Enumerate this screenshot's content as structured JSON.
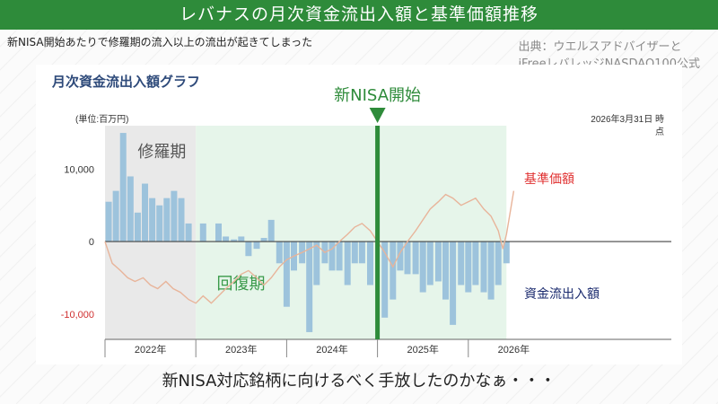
{
  "header": {
    "title": "レバナスの月次資金流出入額と基準価額推移",
    "subtitle": "新NISA開始あたりで修羅期の流入以上の流出が起きてしまった",
    "source_line1": "出典：ウエルスアドバイザーと",
    "source_line2": "iFreeレバレッジNASDAQ100公式"
  },
  "footer": {
    "caption": "新NISA対応銘柄に向けるべく手放したのかなぁ・・・"
  },
  "colors": {
    "banner": "#2e8b3a",
    "flow_bar": "#9dc3dc",
    "price_line": "#e8b49a",
    "shura_band": "#e9e9e9",
    "recovery_band": "#e6f5ea",
    "nisa_marker": "#2e8b3a",
    "price_label": "#e03030",
    "flow_label": "#1a2a6e",
    "chart_title": "#2e4a7a"
  },
  "chart_data": {
    "type": "bar",
    "title": "月次資金流出入額グラフ",
    "unit_label": "(単位:百万円)",
    "date_label_1": "2026年3月31日 時",
    "date_label_2": "点",
    "ylim": [
      -13500,
      16000
    ],
    "y_ticks": [
      {
        "value": 10000,
        "label": "10,000"
      },
      {
        "value": 0,
        "label": "0"
      },
      {
        "value": -10000,
        "label": "-10,000"
      }
    ],
    "x_range": [
      2021.0,
      2026.5
    ],
    "x_ticks": [
      {
        "value": 2022,
        "label": "2022年"
      },
      {
        "value": 2023,
        "label": "2023年"
      },
      {
        "value": 2024,
        "label": "2024年"
      },
      {
        "value": 2025,
        "label": "2025年"
      },
      {
        "value": 2026,
        "label": "2026年"
      }
    ],
    "regions": [
      {
        "name": "修羅期",
        "start": 2021.0,
        "end": 2022.0
      },
      {
        "name": "回復期",
        "start": 2022.0,
        "end": 2025.42
      }
    ],
    "marker": {
      "label": "新NISA開始",
      "x": 2024.0
    },
    "series": [
      {
        "name": "資金流出入額",
        "values": [
          {
            "x": 2021.04,
            "y": 5500
          },
          {
            "x": 2021.12,
            "y": 7000
          },
          {
            "x": 2021.2,
            "y": 15000
          },
          {
            "x": 2021.28,
            "y": 9000
          },
          {
            "x": 2021.36,
            "y": 4000
          },
          {
            "x": 2021.44,
            "y": 8000
          },
          {
            "x": 2021.52,
            "y": 6000
          },
          {
            "x": 2021.6,
            "y": 5000
          },
          {
            "x": 2021.68,
            "y": 6000
          },
          {
            "x": 2021.76,
            "y": 7000
          },
          {
            "x": 2021.84,
            "y": 6000
          },
          {
            "x": 2021.92,
            "y": 2500
          },
          {
            "x": 2022.08,
            "y": 2500
          },
          {
            "x": 2022.25,
            "y": 2500
          },
          {
            "x": 2022.33,
            "y": 700
          },
          {
            "x": 2022.42,
            "y": 300
          },
          {
            "x": 2022.5,
            "y": 700
          },
          {
            "x": 2022.58,
            "y": -2000
          },
          {
            "x": 2022.67,
            "y": -1000
          },
          {
            "x": 2022.75,
            "y": 500
          },
          {
            "x": 2022.83,
            "y": 3000
          },
          {
            "x": 2022.92,
            "y": -3000
          },
          {
            "x": 2023.0,
            "y": -9000
          },
          {
            "x": 2023.08,
            "y": -4000
          },
          {
            "x": 2023.17,
            "y": -3000
          },
          {
            "x": 2023.25,
            "y": -12500
          },
          {
            "x": 2023.33,
            "y": -6000
          },
          {
            "x": 2023.42,
            "y": -3000
          },
          {
            "x": 2023.5,
            "y": -4000
          },
          {
            "x": 2023.58,
            "y": -4000
          },
          {
            "x": 2023.67,
            "y": -6000
          },
          {
            "x": 2023.75,
            "y": -3000
          },
          {
            "x": 2023.83,
            "y": -3000
          },
          {
            "x": 2023.92,
            "y": -6000
          },
          {
            "x": 2024.08,
            "y": -10500
          },
          {
            "x": 2024.17,
            "y": -8000
          },
          {
            "x": 2024.25,
            "y": -4000
          },
          {
            "x": 2024.33,
            "y": -4500
          },
          {
            "x": 2024.42,
            "y": -4500
          },
          {
            "x": 2024.5,
            "y": -7000
          },
          {
            "x": 2024.58,
            "y": -6000
          },
          {
            "x": 2024.67,
            "y": -5500
          },
          {
            "x": 2024.75,
            "y": -8000
          },
          {
            "x": 2024.83,
            "y": -11500
          },
          {
            "x": 2024.92,
            "y": -6000
          },
          {
            "x": 2025.0,
            "y": -7000
          },
          {
            "x": 2025.08,
            "y": -6000
          },
          {
            "x": 2025.17,
            "y": -7000
          },
          {
            "x": 2025.25,
            "y": -8000
          },
          {
            "x": 2025.33,
            "y": -6000
          },
          {
            "x": 2025.42,
            "y": -3000
          }
        ]
      },
      {
        "name": "基準価額",
        "values": [
          {
            "x": 2021.0,
            "y": 0
          },
          {
            "x": 2021.04,
            "y": -1500
          },
          {
            "x": 2021.08,
            "y": -3000
          },
          {
            "x": 2021.17,
            "y": -4000
          },
          {
            "x": 2021.25,
            "y": -5000
          },
          {
            "x": 2021.33,
            "y": -5500
          },
          {
            "x": 2021.42,
            "y": -5000
          },
          {
            "x": 2021.5,
            "y": -6000
          },
          {
            "x": 2021.58,
            "y": -6500
          },
          {
            "x": 2021.67,
            "y": -5500
          },
          {
            "x": 2021.75,
            "y": -6500
          },
          {
            "x": 2021.83,
            "y": -7000
          },
          {
            "x": 2021.92,
            "y": -8000
          },
          {
            "x": 2022.0,
            "y": -8500
          },
          {
            "x": 2022.08,
            "y": -7500
          },
          {
            "x": 2022.17,
            "y": -8500
          },
          {
            "x": 2022.25,
            "y": -7500
          },
          {
            "x": 2022.33,
            "y": -6500
          },
          {
            "x": 2022.42,
            "y": -5500
          },
          {
            "x": 2022.5,
            "y": -4500
          },
          {
            "x": 2022.58,
            "y": -4000
          },
          {
            "x": 2022.67,
            "y": -5000
          },
          {
            "x": 2022.75,
            "y": -6000
          },
          {
            "x": 2022.83,
            "y": -5000
          },
          {
            "x": 2022.92,
            "y": -3500
          },
          {
            "x": 2023.0,
            "y": -2500
          },
          {
            "x": 2023.08,
            "y": -2000
          },
          {
            "x": 2023.17,
            "y": -1500
          },
          {
            "x": 2023.25,
            "y": -1000
          },
          {
            "x": 2023.33,
            "y": -500
          },
          {
            "x": 2023.42,
            "y": -1500
          },
          {
            "x": 2023.5,
            "y": -1000
          },
          {
            "x": 2023.58,
            "y": 0
          },
          {
            "x": 2023.67,
            "y": 1000
          },
          {
            "x": 2023.75,
            "y": 2000
          },
          {
            "x": 2023.83,
            "y": 2500
          },
          {
            "x": 2023.92,
            "y": 1500
          },
          {
            "x": 2024.0,
            "y": 0
          },
          {
            "x": 2024.08,
            "y": -1500
          },
          {
            "x": 2024.17,
            "y": -3500
          },
          {
            "x": 2024.25,
            "y": -1500
          },
          {
            "x": 2024.33,
            "y": 0
          },
          {
            "x": 2024.42,
            "y": 1500
          },
          {
            "x": 2024.5,
            "y": 3000
          },
          {
            "x": 2024.58,
            "y": 4500
          },
          {
            "x": 2024.67,
            "y": 5500
          },
          {
            "x": 2024.75,
            "y": 6500
          },
          {
            "x": 2024.83,
            "y": 6000
          },
          {
            "x": 2024.92,
            "y": 5000
          },
          {
            "x": 2025.0,
            "y": 5500
          },
          {
            "x": 2025.08,
            "y": 6000
          },
          {
            "x": 2025.17,
            "y": 4500
          },
          {
            "x": 2025.25,
            "y": 3500
          },
          {
            "x": 2025.33,
            "y": 1500
          },
          {
            "x": 2025.38,
            "y": -1000
          },
          {
            "x": 2025.42,
            "y": 1000
          },
          {
            "x": 2025.46,
            "y": 4000
          },
          {
            "x": 2025.5,
            "y": 7000
          }
        ]
      }
    ]
  }
}
